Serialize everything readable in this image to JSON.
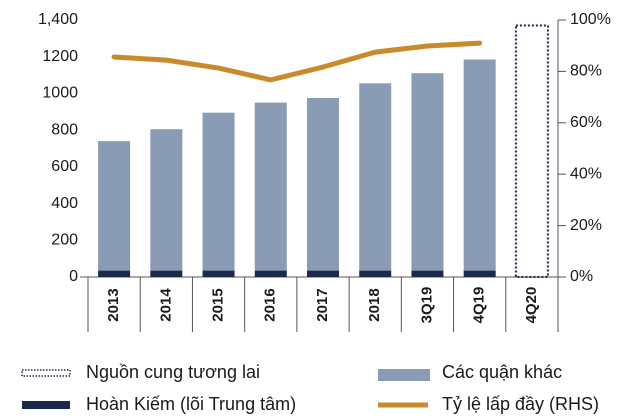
{
  "chart_data": {
    "type": "bar",
    "categories": [
      "2013",
      "2014",
      "2015",
      "2016",
      "2017",
      "2018",
      "3Q19",
      "4Q19",
      "4Q20"
    ],
    "series": [
      {
        "name": "Nguồn cung tương lai",
        "color": "#1b2a4a",
        "values": [
          null,
          null,
          null,
          null,
          null,
          null,
          null,
          null,
          1370
        ]
      },
      {
        "name": "Hoàn Kiếm (lõi Trung tâm)",
        "color": "#1b2a4a",
        "values": [
          35,
          35,
          35,
          35,
          35,
          35,
          35,
          35,
          null
        ]
      },
      {
        "name": "Các quận khác",
        "color": "#8a9bb5",
        "values": [
          705,
          770,
          860,
          915,
          940,
          1020,
          1075,
          1150,
          null
        ]
      },
      {
        "name": "Tỷ lệ lấp đầy (RHS)",
        "color": "#c98a2b",
        "type": "line",
        "axis": "y2",
        "values": [
          85.6,
          84.4,
          81.3,
          76.7,
          81.7,
          87.5,
          89.9,
          91,
          null
        ]
      }
    ],
    "ylim": [
      0,
      1400
    ],
    "yticks": [
      0,
      200,
      400,
      600,
      800,
      1000,
      1200,
      {
        "value": 1400,
        "label": "1,400"
      }
    ],
    "y2lim": [
      0,
      100
    ],
    "y2ticks": [
      {
        "value": 0,
        "label": "0%"
      },
      {
        "value": 20,
        "label": "20%"
      },
      {
        "value": 40,
        "label": "40%"
      },
      {
        "value": 60,
        "label": "60%"
      },
      {
        "value": 80,
        "label": "80%"
      },
      {
        "value": 100,
        "label": "100%"
      }
    ],
    "grid": false
  }
}
